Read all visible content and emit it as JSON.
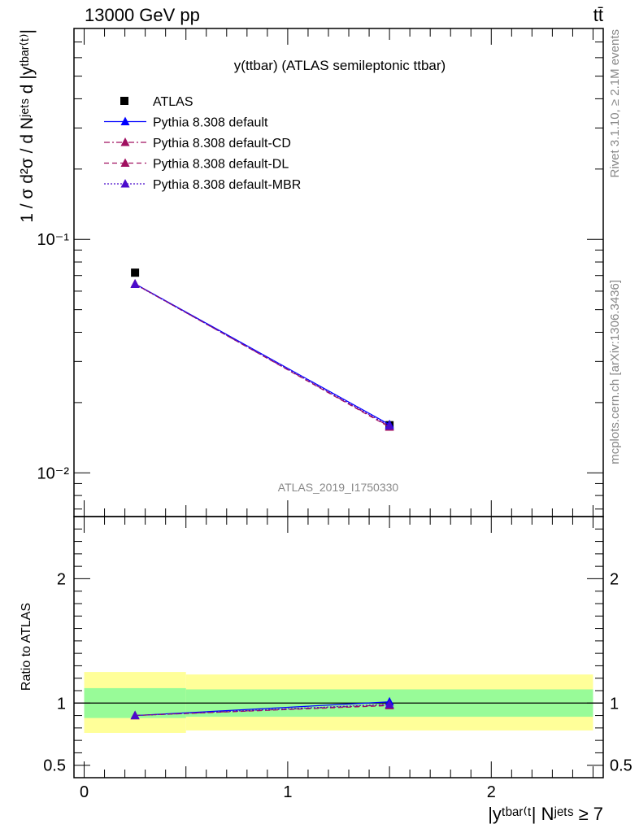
{
  "header": {
    "energy_label": "13000 GeV pp",
    "process_label": "tt̄"
  },
  "side_labels": {
    "rivet": "Rivet 3.1.10, ≥ 2.1M events",
    "mcplots": "mcplots.cern.ch [arXiv:1306.3436]"
  },
  "chart_data": [
    {
      "type": "line",
      "panel": "main",
      "title": "y(ttbar) (ATLAS semileptonic ttbar)",
      "watermark": "ATLAS_2019_I1750330",
      "ylabel": "1 / σ d²σ / d Nʲᵉᵗˢ d |yᵗᵇᵃʳ⁽ᵗ⁾|",
      "yscale": "log",
      "ylim": [
        0.0065,
        0.8
      ],
      "xlim": [
        -0.05,
        2.55
      ],
      "ytick_labels": [
        "10⁻²",
        "10⁻¹"
      ],
      "legend_position": "top-left",
      "x": [
        0.25,
        1.5
      ],
      "series": [
        {
          "name": "ATLAS",
          "marker": "square",
          "color": "#000000",
          "line": "none",
          "values": [
            0.072,
            0.016
          ],
          "band_lo": [
            0.0705,
            0.0157
          ],
          "band_hi": [
            0.0735,
            0.0163
          ]
        },
        {
          "name": "Pythia 8.308 default",
          "marker": "triangle",
          "color": "#0000ff",
          "line": "solid",
          "values": [
            0.0645,
            0.0161
          ]
        },
        {
          "name": "Pythia 8.308 default-CD",
          "marker": "triangle",
          "color": "#a01060",
          "line": "dashdot",
          "values": [
            0.0643,
            0.0158
          ]
        },
        {
          "name": "Pythia 8.308 default-DL",
          "marker": "triangle",
          "color": "#a01060",
          "line": "dashed",
          "values": [
            0.0644,
            0.0157
          ]
        },
        {
          "name": "Pythia 8.308 default-MBR",
          "marker": "triangle",
          "color": "#4b0bcc",
          "line": "dotted",
          "values": [
            0.0642,
            0.0159
          ]
        }
      ]
    },
    {
      "type": "line",
      "panel": "ratio",
      "ylabel": "Ratio to ATLAS",
      "xlabel": "|yᵗᵇᵃʳ⁽ᵗ| Nʲᵉᵗˢ ≥ 7",
      "ylim": [
        0.4,
        2.5
      ],
      "xlim": [
        -0.05,
        2.55
      ],
      "ytick_labels": [
        "0.5",
        "1",
        "2"
      ],
      "xtick_labels": [
        "0",
        "1",
        "2"
      ],
      "bands": [
        {
          "name": "stat",
          "color": "#98fb98",
          "bins": [
            [
              0.0,
              0.5,
              0.88,
              1.12
            ],
            [
              0.5,
              2.5,
              0.89,
              1.11
            ]
          ]
        },
        {
          "name": "total",
          "color": "#ffff99",
          "bins": [
            [
              0.0,
              0.5,
              0.76,
              1.25
            ],
            [
              0.5,
              2.5,
              0.78,
              1.23
            ]
          ]
        }
      ],
      "x": [
        0.25,
        1.5
      ],
      "series": [
        {
          "name": "Pythia 8.308 default",
          "color": "#0000ff",
          "line": "solid",
          "values": [
            0.9,
            1.01
          ]
        },
        {
          "name": "Pythia 8.308 default-CD",
          "color": "#a01060",
          "line": "dashdot",
          "values": [
            0.9,
            0.985
          ]
        },
        {
          "name": "Pythia 8.308 default-DL",
          "color": "#a01060",
          "line": "dashed",
          "values": [
            0.9,
            0.98
          ]
        },
        {
          "name": "Pythia 8.308 default-MBR",
          "color": "#4b0bcc",
          "line": "dotted",
          "values": [
            0.9,
            0.99
          ]
        }
      ]
    }
  ]
}
